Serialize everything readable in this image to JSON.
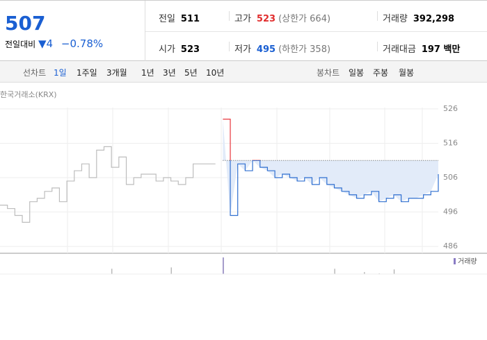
{
  "header": {
    "price": 507,
    "change_label": "전일대비",
    "change": 4,
    "change_rate": "−0.78%",
    "stats": [
      {
        "label": "전일",
        "value": 511
      },
      {
        "label": "고가",
        "value": 523,
        "note": "(상한가 664)"
      },
      {
        "label": "거래량",
        "value": "392,298"
      },
      {
        "label": "시가",
        "value": 523
      },
      {
        "label": "저가",
        "value": 495,
        "note": "(하한가 358)"
      },
      {
        "label": "거래대금",
        "value": "197 백만"
      }
    ]
  },
  "tabs": {
    "line_label": "선차트",
    "line": [
      "1일",
      "1주일",
      "3개월",
      "1년",
      "3년",
      "5년",
      "10년"
    ],
    "candle_label": "봉차트",
    "candle": [
      "일봉",
      "주봉",
      "월봉"
    ]
  },
  "chart_data": {
    "type": "line",
    "source": "한국거래소(KRX)",
    "ylim": [
      484,
      528.4
    ],
    "yticks": [
      486,
      496,
      506,
      516,
      526
    ],
    "grid": true,
    "series": [
      {
        "color": "#bdbdbd",
        "values": [
          498,
          497,
          495,
          493,
          499,
          500,
          502,
          503,
          499,
          505,
          508,
          510,
          506,
          514,
          515,
          509,
          512,
          504,
          506,
          507,
          507,
          505,
          506,
          505,
          504,
          506,
          510,
          510,
          510,
          510,
          null,
          null,
          null,
          null,
          null,
          null,
          null,
          null,
          null,
          null,
          null,
          null,
          null,
          null,
          null,
          null,
          null,
          null,
          null,
          null,
          null,
          null,
          null,
          null,
          null,
          null,
          null,
          null,
          null,
          null
        ]
      },
      {
        "color": "#2f6fd0",
        "up_color": "#e8343a",
        "fill": "#e2ebf9",
        "values": [
          null,
          null,
          null,
          null,
          null,
          null,
          null,
          null,
          null,
          null,
          null,
          null,
          null,
          null,
          null,
          null,
          null,
          null,
          null,
          null,
          null,
          null,
          null,
          null,
          null,
          null,
          null,
          null,
          null,
          null,
          523,
          495,
          510,
          508,
          511,
          509,
          508,
          506,
          507,
          506,
          505,
          506,
          504,
          506,
          504,
          503,
          502,
          501,
          500,
          501,
          502,
          499,
          500,
          501,
          499,
          500,
          500,
          501,
          502,
          507
        ]
      }
    ],
    "volume": {
      "name": "거래량",
      "color": "#a9a9a9",
      "values": [
        null,
        null,
        null,
        null,
        null,
        null,
        null,
        null,
        null,
        null,
        null,
        null,
        null,
        null,
        null,
        8,
        null,
        null,
        null,
        null,
        null,
        null,
        null,
        10,
        null,
        null,
        null,
        null,
        null,
        null,
        25,
        null,
        null,
        null,
        null,
        null,
        null,
        null,
        null,
        null,
        null,
        null,
        null,
        null,
        null,
        8,
        null,
        null,
        null,
        3,
        null,
        1,
        null,
        7,
        null,
        null,
        null,
        null,
        null,
        null
      ]
    }
  }
}
